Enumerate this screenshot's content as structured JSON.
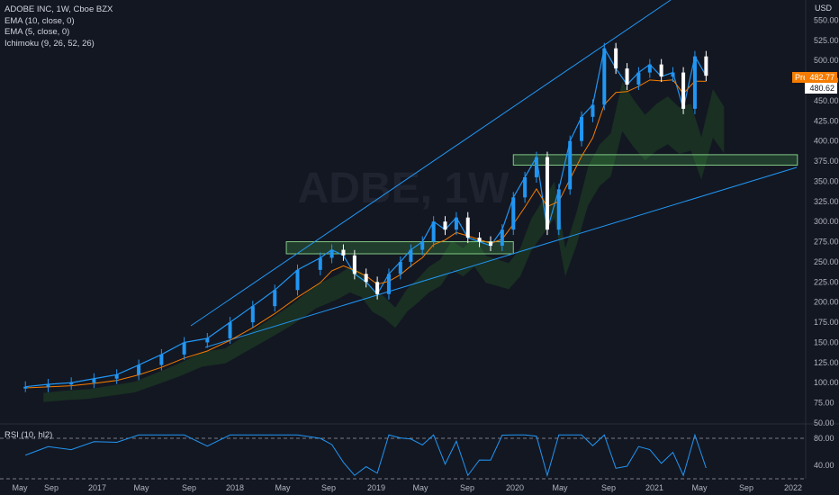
{
  "legend": {
    "title": "ADOBE INC, 1W, Cboe BZX",
    "ema10": "EMA (10, close, 0)",
    "ema5": "EMA (5, close, 0)",
    "ichimoku": "Ichimoku (9, 26, 52, 26)",
    "rsi": "RSI (10, hl2)"
  },
  "watermark": "ADBE, 1W",
  "currency": "USD",
  "price_labels": {
    "pre_tag": "Pre",
    "pre_value": "482.77",
    "last_value": "480.62"
  },
  "colors": {
    "background": "#131722",
    "up": "#2196f3",
    "down": "#ffffff",
    "ema": "#f57c00",
    "cloud": "#1b3324",
    "zone_fill": "#4caf5040",
    "zone_stroke": "#81c784",
    "trendline": "#2196f3",
    "rsi_line": "#2196f3"
  },
  "chart_data": [
    {
      "type": "line",
      "title": "ADOBE INC, 1W, Cboe BZX",
      "ylim": [
        50,
        575
      ],
      "y_ticks": [
        "550.00",
        "525.00",
        "500.00",
        "475.00",
        "450.00",
        "425.00",
        "400.00",
        "375.00",
        "350.00",
        "325.00",
        "300.00",
        "275.00",
        "250.00",
        "225.00",
        "200.00",
        "175.00",
        "150.00",
        "125.00",
        "100.00",
        "75.00",
        "50.00"
      ],
      "x_ticks": [
        "May",
        "Sep",
        "2017",
        "May",
        "Sep",
        "2018",
        "May",
        "Sep",
        "2019",
        "May",
        "Sep",
        "2020",
        "May",
        "Sep",
        "2021",
        "May",
        "Sep",
        "2022"
      ],
      "series": [
        {
          "name": "ADOBE INC",
          "x": [
            "2016-05",
            "2016-07",
            "2016-09",
            "2016-11",
            "2017-01",
            "2017-03",
            "2017-05",
            "2017-07",
            "2017-09",
            "2017-11",
            "2018-01",
            "2018-03",
            "2018-05",
            "2018-07",
            "2018-08",
            "2018-09",
            "2018-10",
            "2018-11",
            "2018-12",
            "2019-01",
            "2019-02",
            "2019-03",
            "2019-04",
            "2019-05",
            "2019-06",
            "2019-07",
            "2019-08",
            "2019-09",
            "2019-10",
            "2019-11",
            "2019-12",
            "2020-01",
            "2020-02",
            "2020-03",
            "2020-04",
            "2020-05",
            "2020-06",
            "2020-07",
            "2020-08",
            "2020-09",
            "2020-10",
            "2020-11",
            "2020-12",
            "2021-01",
            "2021-02",
            "2021-03",
            "2021-04",
            "2021-05"
          ],
          "values": [
            95,
            98,
            100,
            105,
            110,
            122,
            135,
            150,
            155,
            175,
            195,
            215,
            240,
            255,
            265,
            258,
            235,
            225,
            210,
            235,
            250,
            265,
            275,
            300,
            290,
            305,
            280,
            275,
            270,
            290,
            330,
            355,
            380,
            290,
            340,
            400,
            430,
            445,
            515,
            490,
            470,
            485,
            495,
            480,
            485,
            440,
            505,
            481
          ]
        }
      ],
      "zones": [
        {
          "y_low": 260,
          "y_high": 275,
          "x_start": "2018-04",
          "x_end": "2019-12"
        },
        {
          "y_low": 370,
          "y_high": 383,
          "x_start": "2019-12",
          "x_end": "2022-01"
        }
      ]
    },
    {
      "type": "line",
      "title": "RSI (10, hl2)",
      "ylim": [
        20,
        100
      ],
      "y_ticks": [
        "80.00",
        "40.00"
      ],
      "bands": [
        80,
        20
      ]
    }
  ]
}
